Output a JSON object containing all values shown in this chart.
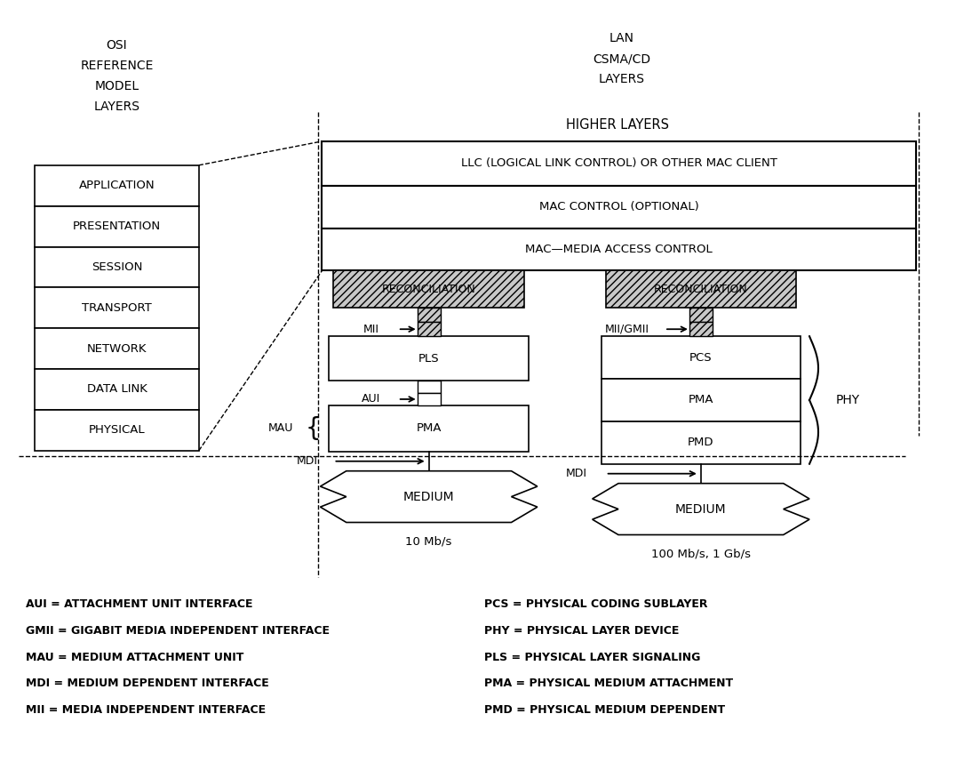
{
  "bg_color": "#ffffff",
  "osi_layers": [
    "APPLICATION",
    "PRESENTATION",
    "SESSION",
    "TRANSPORT",
    "NETWORK",
    "DATA LINK",
    "PHYSICAL"
  ],
  "osi_header": [
    "OSI",
    "REFERENCE",
    "MODEL",
    "LAYERS"
  ],
  "lan_header": [
    "LAN",
    "CSMA/CD",
    "LAYERS"
  ],
  "higher_layers_label": "HIGHER LAYERS",
  "llc_label": "LLC (LOGICAL LINK CONTROL) OR OTHER MAC CLIENT",
  "mac_control_label": "MAC CONTROL (OPTIONAL)",
  "mac_label": "MAC—MEDIA ACCESS CONTROL",
  "recon1_label": "RECONCILIATION",
  "recon2_label": "RECONCILIATION",
  "pls_label": "PLS",
  "pcs_label": "PCS",
  "pma1_label": "PMA",
  "pma2_label": "PMA",
  "pmd_label": "PMD",
  "medium1_label": "MEDIUM",
  "medium2_label": "MEDIUM",
  "mii_label": "MII",
  "mii_gmii_label": "MII/GMII",
  "aui_label": "AUI",
  "mau_label": "MAU",
  "mdi1_label": "MDI",
  "mdi2_label": "MDI",
  "phy_label": "PHY",
  "speed1_label": "10 Mb/s",
  "speed2_label": "100 Mb/s, 1 Gb/s",
  "abbrevs_left": [
    "AUI = ATTACHMENT UNIT INTERFACE",
    "GMII = GIGABIT MEDIA INDEPENDENT INTERFACE",
    "MAU = MEDIUM ATTACHMENT UNIT",
    "MDI = MEDIUM DEPENDENT INTERFACE",
    "MII = MEDIA INDEPENDENT INTERFACE"
  ],
  "abbrevs_right": [
    "PCS = PHYSICAL CODING SUBLAYER",
    "PHY = PHYSICAL LAYER DEVICE",
    "PLS = PHYSICAL LAYER SIGNALING",
    "PMA = PHYSICAL MEDIUM ATTACHMENT",
    "PMD = PHYSICAL MEDIUM DEPENDENT"
  ]
}
